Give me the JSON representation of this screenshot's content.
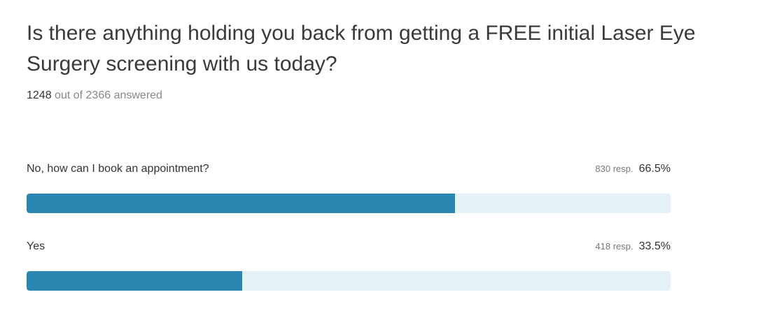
{
  "question": "Is there anything holding you back from getting a FREE initial Laser Eye Surgery screening with us today?",
  "summary": {
    "answered_count": "1248",
    "answered_text": "out of 2366 answered"
  },
  "colors": {
    "bar_fill": "#2b87b1",
    "bar_track": "#e4f1f7"
  },
  "chart_data": {
    "type": "bar",
    "orientation": "horizontal",
    "categories": [
      "No, how can I book an appointment?",
      "Yes"
    ],
    "responses": [
      830,
      418
    ],
    "values": [
      66.5,
      33.5
    ],
    "response_labels": [
      "830 resp.",
      "418 resp."
    ],
    "percent_labels": [
      "66.5%",
      "33.5%"
    ],
    "xlim": [
      0,
      100
    ],
    "grid": false
  },
  "options": [
    {
      "label": "No, how can I book an appointment?",
      "responses": "830 resp.",
      "percent": "66.5%"
    },
    {
      "label": "Yes",
      "responses": "418 resp.",
      "percent": "33.5%"
    }
  ]
}
